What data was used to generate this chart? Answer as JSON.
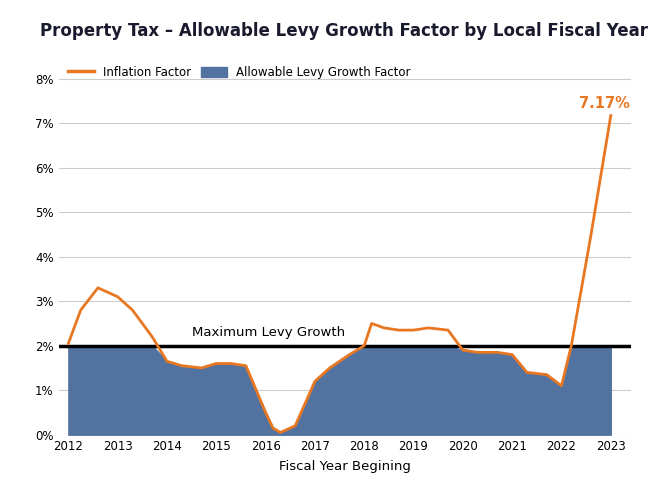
{
  "title": "Property Tax – Allowable Levy Growth Factor by Local Fiscal Year",
  "xlabel": "Fiscal Year Begining",
  "title_fontsize": 12,
  "title_bg_color": "#d8d8d8",
  "plot_bg_color": "#ffffff",
  "fig_bg_color": "#ffffff",
  "inflation_color": "#E87722",
  "area_color": "#5272a0",
  "max_levy_line_color": "#000000",
  "max_levy_value": 2.0,
  "max_levy_label": "Maximum Levy Growth",
  "annotation_text": "7.17%",
  "annotation_color": "#E87722",
  "years": [
    2012,
    2012.25,
    2012.6,
    2013.0,
    2013.3,
    2013.7,
    2014.0,
    2014.3,
    2014.7,
    2015.0,
    2015.3,
    2015.6,
    2016.0,
    2016.15,
    2016.3,
    2016.6,
    2017.0,
    2017.3,
    2017.7,
    2018.0,
    2018.15,
    2018.4,
    2018.7,
    2019.0,
    2019.3,
    2019.7,
    2020.0,
    2020.3,
    2020.7,
    2021.0,
    2021.3,
    2021.7,
    2022.0,
    2022.2,
    2022.6,
    2023.0
  ],
  "inflation_values": [
    2.05,
    2.8,
    3.3,
    3.1,
    2.8,
    2.2,
    1.65,
    1.55,
    1.5,
    1.6,
    1.6,
    1.55,
    0.5,
    0.15,
    0.05,
    0.2,
    1.2,
    1.5,
    1.8,
    2.0,
    2.5,
    2.4,
    2.35,
    2.35,
    2.4,
    2.35,
    1.9,
    1.85,
    1.85,
    1.8,
    1.4,
    1.35,
    1.1,
    2.0,
    4.5,
    7.17
  ],
  "allowable_values": [
    2.0,
    2.0,
    2.0,
    2.0,
    2.0,
    2.0,
    1.65,
    1.55,
    1.5,
    1.6,
    1.6,
    1.55,
    0.5,
    0.15,
    0.05,
    0.2,
    1.2,
    1.5,
    1.8,
    2.0,
    2.0,
    2.0,
    2.0,
    2.0,
    2.0,
    2.0,
    1.9,
    1.85,
    1.85,
    1.8,
    1.4,
    1.35,
    1.1,
    2.0,
    2.0,
    2.0
  ],
  "ylim": [
    0,
    8.5
  ],
  "yticks": [
    0,
    1,
    2,
    3,
    4,
    5,
    6,
    7,
    8
  ],
  "ytick_labels": [
    "0%",
    "1%",
    "2%",
    "3%",
    "4%",
    "5%",
    "6%",
    "7%",
    "8%"
  ],
  "xlim": [
    2011.8,
    2023.4
  ],
  "xticks": [
    2012,
    2013,
    2014,
    2015,
    2016,
    2017,
    2018,
    2019,
    2020,
    2021,
    2022,
    2023
  ],
  "grid_color": "#cccccc",
  "legend_inflation_label": "Inflation Factor",
  "legend_area_label": "Allowable Levy Growth Factor"
}
